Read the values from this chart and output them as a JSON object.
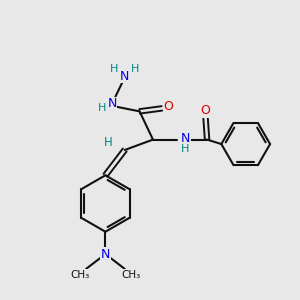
{
  "bg_color": "#e8e8e8",
  "bond_color": "#111111",
  "N_color": "#0000dd",
  "O_color": "#dd0000",
  "H_color": "#008888",
  "figsize": [
    3.0,
    3.0
  ],
  "dpi": 100,
  "xlim": [
    0,
    10
  ],
  "ylim": [
    0,
    10
  ]
}
